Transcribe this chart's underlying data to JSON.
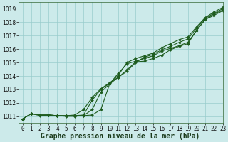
{
  "title": "Graphe pression niveau de la mer (hPa)",
  "background_color": "#cceaea",
  "grid_color": "#99cccc",
  "line_color": "#1e5c1e",
  "xlim": [
    -0.5,
    23
  ],
  "ylim": [
    1010.5,
    1019.5
  ],
  "yticks": [
    1011,
    1012,
    1013,
    1014,
    1015,
    1016,
    1017,
    1018,
    1019
  ],
  "xticks": [
    0,
    1,
    2,
    3,
    4,
    5,
    6,
    7,
    8,
    9,
    10,
    11,
    12,
    13,
    14,
    15,
    16,
    17,
    18,
    19,
    20,
    21,
    22,
    23
  ],
  "series": [
    [
      1010.8,
      1011.2,
      1011.1,
      1011.1,
      1011.05,
      1011.05,
      1011.05,
      1011.05,
      1011.1,
      1011.5,
      1013.4,
      1013.9,
      1014.45,
      1015.05,
      1015.1,
      1015.3,
      1015.55,
      1015.95,
      1016.2,
      1016.4,
      1017.4,
      1018.2,
      1018.5,
      1018.85
    ],
    [
      1010.8,
      1011.2,
      1011.1,
      1011.1,
      1011.05,
      1011.0,
      1011.0,
      1011.05,
      1011.5,
      1012.8,
      1013.4,
      1014.2,
      1014.9,
      1015.1,
      1015.3,
      1015.5,
      1015.85,
      1016.05,
      1016.25,
      1016.5,
      1017.4,
      1018.2,
      1018.6,
      1018.9
    ],
    [
      1010.8,
      1011.2,
      1011.05,
      1011.1,
      1011.05,
      1011.05,
      1011.1,
      1011.5,
      1012.4,
      1013.05,
      1013.5,
      1013.9,
      1014.35,
      1015.0,
      1015.4,
      1015.6,
      1015.95,
      1016.2,
      1016.5,
      1016.75,
      1017.55,
      1018.3,
      1018.65,
      1019.0
    ],
    [
      1010.8,
      1011.2,
      1011.1,
      1011.1,
      1011.05,
      1011.05,
      1011.05,
      1011.1,
      1012.2,
      1013.0,
      1013.45,
      1014.05,
      1015.0,
      1015.3,
      1015.5,
      1015.7,
      1016.1,
      1016.4,
      1016.7,
      1016.9,
      1017.65,
      1018.35,
      1018.75,
      1019.1
    ]
  ],
  "title_fontsize": 7,
  "tick_fontsize": 5.5,
  "line_width": 0.8,
  "marker": "D",
  "marker_size": 2.0
}
